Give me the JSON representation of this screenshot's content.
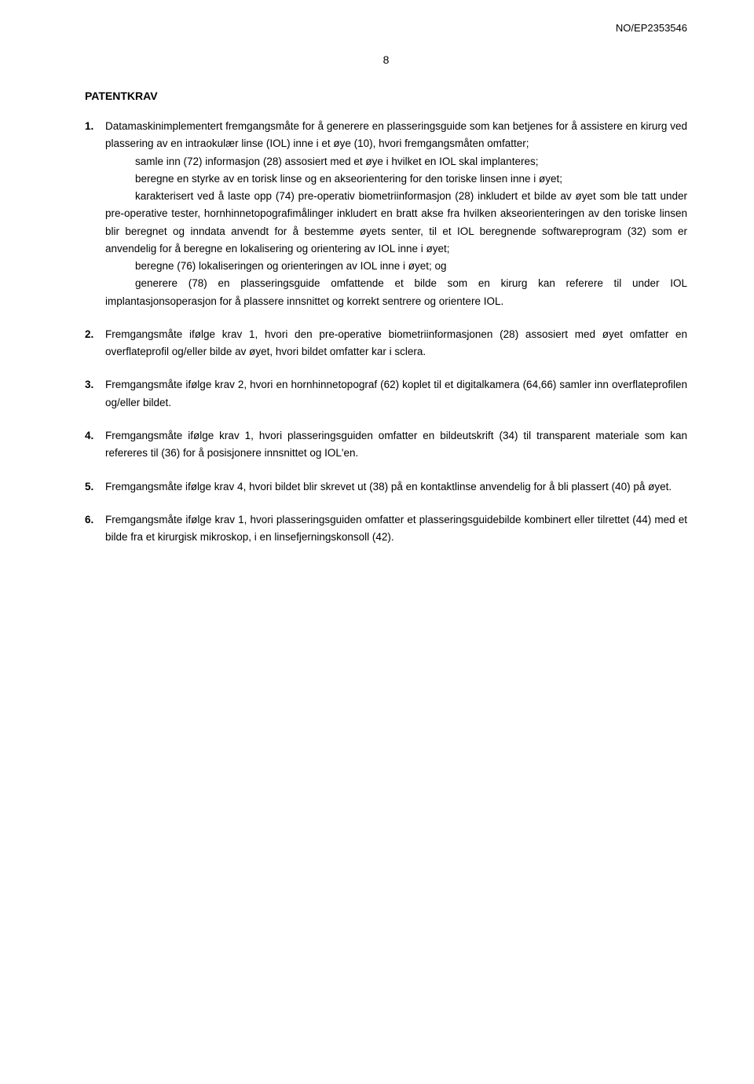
{
  "header": {
    "docRef": "NO/EP2353546"
  },
  "pageNumber": "8",
  "sectionTitle": "PATENTKRAV",
  "claims": [
    {
      "number": "1.",
      "paragraphs": [
        "Datamaskinimplementert fremgangsmåte for å generere en plasseringsguide som kan betjenes for å assistere en kirurg ved plassering av en intraokulær linse (IOL) inne i et øye (10), hvori fremgangsmåten omfatter;"
      ],
      "indentedParagraphs": [
        "samle inn (72) informasjon (28) assosiert med et øye i hvilket en IOL skal implanteres;",
        "beregne en styrke av en torisk linse og en akseorientering for den toriske linsen inne i øyet;",
        "karakterisert ved å laste opp (74) pre-operativ biometriinformasjon (28) inkludert et bilde av øyet som ble tatt under pre-operative tester, hornhinnetopografimålinger inkludert en bratt akse fra hvilken akseorienteringen av den toriske linsen blir beregnet og inndata anvendt for å bestemme øyets senter, til et IOL beregnende softwareprogram (32) som er anvendelig for å beregne en lokalisering og orientering av IOL inne i øyet;",
        "beregne (76) lokaliseringen og orienteringen av IOL inne i øyet; og",
        "generere (78) en plasseringsguide omfattende et bilde som en kirurg kan referere til under IOL implantasjonsoperasjon for å plassere innsnittet og korrekt sentrere og orientere IOL."
      ]
    },
    {
      "number": "2.",
      "paragraphs": [
        "Fremgangsmåte ifølge krav 1, hvori den pre-operative biometriinformasjonen (28) assosiert med øyet omfatter en overflateprofil og/eller bilde av øyet, hvori bildet omfatter kar i sclera."
      ]
    },
    {
      "number": "3.",
      "paragraphs": [
        "Fremgangsmåte ifølge krav 2, hvori en hornhinnetopograf (62) koplet til et digitalkamera (64,66) samler inn overflateprofilen og/eller bildet."
      ]
    },
    {
      "number": "4.",
      "paragraphs": [
        "Fremgangsmåte ifølge krav 1, hvori plasseringsguiden omfatter en bildeutskrift (34) til transparent materiale som kan refereres til (36) for å posisjonere innsnittet og IOL'en."
      ]
    },
    {
      "number": "5.",
      "paragraphs": [
        "Fremgangsmåte ifølge krav 4, hvori bildet blir skrevet ut (38) på en kontaktlinse anvendelig for å bli plassert (40) på øyet."
      ]
    },
    {
      "number": "6.",
      "paragraphs": [
        "Fremgangsmåte ifølge krav 1, hvori plasseringsguiden omfatter et plasseringsguidebilde kombinert eller tilrettet (44) med et bilde fra et kirurgisk mikroskop, i en linsefjerningskonsoll (42)."
      ]
    }
  ]
}
